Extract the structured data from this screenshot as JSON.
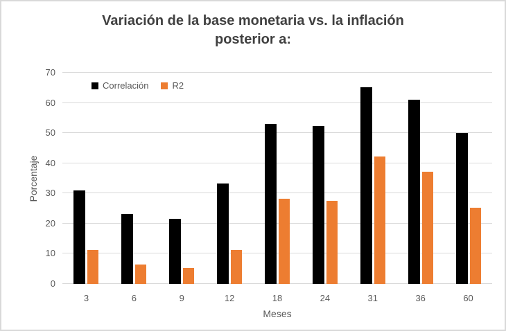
{
  "chart_data": {
    "type": "bar",
    "title": "Variación de la base monetaria vs. la inflación posterior a:",
    "title_lines": [
      "Variación de la base monetaria vs. la inflación",
      "posterior a:"
    ],
    "categories": [
      "3",
      "6",
      "9",
      "12",
      "18",
      "24",
      "31",
      "36",
      "60"
    ],
    "series": [
      {
        "name": "Correlación",
        "color": "#000000",
        "values": [
          31,
          23.2,
          21.5,
          33.3,
          53,
          52.3,
          65.2,
          61,
          50
        ]
      },
      {
        "name": "R2",
        "color": "#ed7d31",
        "values": [
          11.2,
          6.4,
          5.2,
          11.2,
          28.2,
          27.5,
          42.2,
          37.2,
          25.2
        ]
      }
    ],
    "xlabel": "Meses",
    "ylabel": "Porcentaje",
    "ylim": [
      0,
      70
    ],
    "yticks": [
      0,
      10,
      20,
      30,
      40,
      50,
      60,
      70
    ],
    "grid": true,
    "legend_position": "top-left",
    "colors": {
      "gridline": "#d9d9d9",
      "axis_line": "#d9d9d9",
      "tick_text": "#595959",
      "title_text": "#404040",
      "frame_border": "#d9d9d9",
      "background": "#ffffff"
    }
  }
}
